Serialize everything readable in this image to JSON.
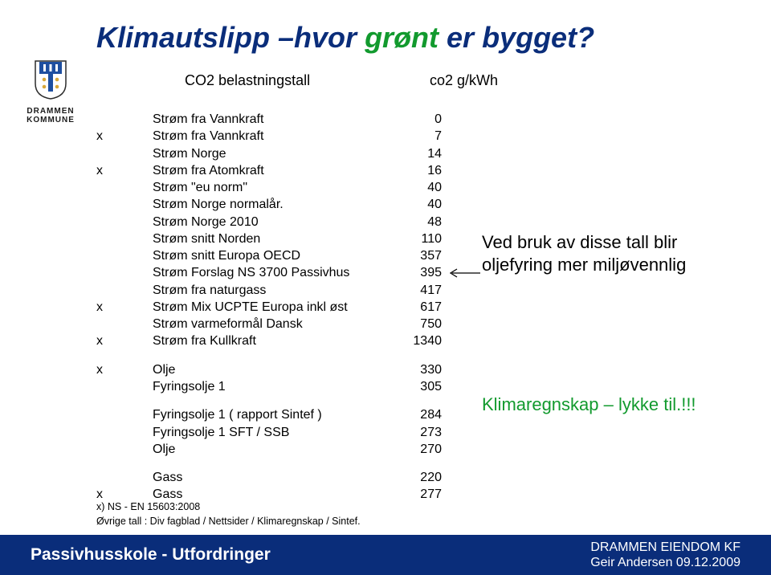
{
  "logo": {
    "line1": "DRAMMEN",
    "line2": "KOMMUNE",
    "colors": {
      "shield_blue": "#1e4fa0",
      "shield_white": "#ffffff",
      "shield_gold": "#d9a83a",
      "shield_outline": "#2b2b2b"
    }
  },
  "title": {
    "part1": "Klimautslipp –hvor ",
    "green": "grønt",
    "part3": " er bygget?",
    "color_main": "#0a2d7a",
    "color_green": "#129a2e",
    "fontsize": 36
  },
  "subtitle": {
    "label": "CO2 belastningstall",
    "unit": "co2 g/kWh",
    "fontsize": 18
  },
  "table": {
    "fontsize": 16,
    "text_color": "#000000",
    "sections": [
      [
        {
          "mark": "",
          "label": "Strøm fra Vannkraft",
          "value": "0"
        },
        {
          "mark": "x",
          "label": "Strøm fra Vannkraft",
          "value": "7"
        },
        {
          "mark": "",
          "label": "Strøm Norge",
          "value": "14"
        },
        {
          "mark": "x",
          "label": "Strøm fra Atomkraft",
          "value": "16"
        },
        {
          "mark": "",
          "label": "Strøm \"eu norm\"",
          "value": "40"
        },
        {
          "mark": "",
          "label": "Strøm Norge normalår.",
          "value": "40"
        },
        {
          "mark": "",
          "label": "Strøm Norge 2010",
          "value": "48"
        },
        {
          "mark": "",
          "label": "Strøm snitt Norden",
          "value": "110"
        },
        {
          "mark": "",
          "label": "Strøm snitt Europa OECD",
          "value": "357"
        },
        {
          "mark": "",
          "label": "Strøm Forslag NS 3700 Passivhus",
          "value": "395"
        },
        {
          "mark": "",
          "label": "Strøm fra naturgass",
          "value": "417"
        },
        {
          "mark": "x",
          "label": "Strøm Mix UCPTE Europa inkl øst",
          "value": "617"
        },
        {
          "mark": "",
          "label": "Strøm varmeformål Dansk",
          "value": "750"
        },
        {
          "mark": "x",
          "label": "Strøm fra Kullkraft",
          "value": "1340"
        }
      ],
      [
        {
          "mark": "x",
          "label": "Olje",
          "value": "330"
        },
        {
          "mark": "",
          "label": "Fyringsolje 1",
          "value": "305"
        }
      ],
      [
        {
          "mark": "",
          "label": "Fyringsolje 1 ( rapport Sintef )",
          "value": "284"
        },
        {
          "mark": "",
          "label": "Fyringsolje 1 SFT / SSB",
          "value": "273"
        },
        {
          "mark": "",
          "label": "Olje",
          "value": "270"
        }
      ],
      [
        {
          "mark": "",
          "label": "Gass",
          "value": "220"
        },
        {
          "mark": "x",
          "label": "Gass",
          "value": "277"
        }
      ]
    ]
  },
  "note1": "Ved bruk av disse tall blir oljefyring mer miljøvennlig",
  "note2": "Klimaregnskap – lykke til.!!!",
  "note1_color": "#000000",
  "note2_color": "#129a2e",
  "note_fontsize": 22,
  "arrow": {
    "color": "#000000"
  },
  "footnotes": {
    "line1": "x) NS - EN 15603:2008",
    "line2": "Øvrige tall : Div fagblad / Nettsider / Klimaregnskap / Sintef."
  },
  "footer": {
    "left": "Passivhusskole - Utfordringer",
    "right_line1": "DRAMMEN EIENDOM KF",
    "right_line2": "Geir Andersen 09.12.2009",
    "bg": "#0a2d7a",
    "text_color": "#ffffff",
    "left_fontsize": 21,
    "right_fontsize": 16
  }
}
